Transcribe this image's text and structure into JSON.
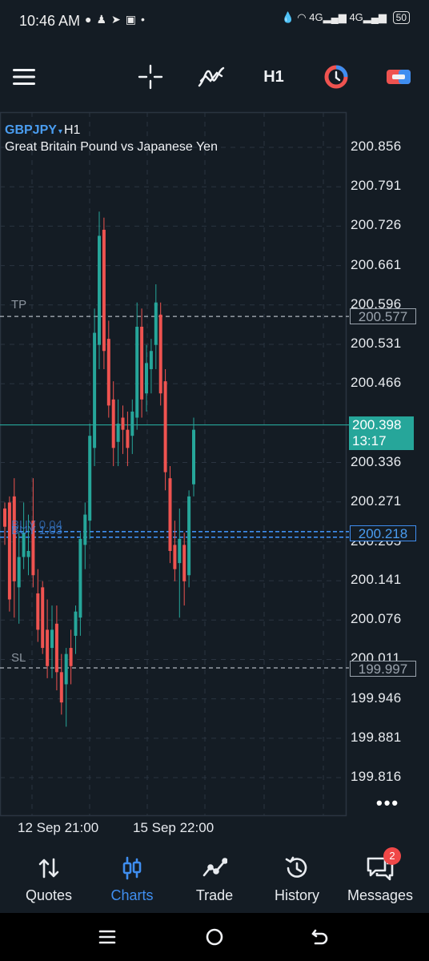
{
  "status_bar": {
    "time": "10:46 AM",
    "left_icons": [
      "messenger-icon",
      "snapchat-icon",
      "telegram-icon",
      "gallery-icon",
      "dot-icon"
    ],
    "right_icons": [
      "data-saver-icon",
      "wifi-icon",
      "4g-signal-icon",
      "4g-signal-icon",
      "battery-icon"
    ],
    "network_1": "4G",
    "network_2": "4G",
    "battery": "50"
  },
  "toolbar": {
    "menu_icon": "hamburger-menu-icon",
    "crosshair_icon": "crosshair-icon",
    "indicators_icon": "indicators-icon",
    "timeframe": "H1",
    "one_click_icon": "one-click-trading-icon",
    "account_icon": "account-icon"
  },
  "chart": {
    "symbol": "GBPJPY",
    "symbol_arrow": "▾",
    "timeframe": "H1",
    "description": "Great Britain Pound vs Japanese Yen",
    "price_axis": [
      "200.856",
      "200.791",
      "200.726",
      "200.661",
      "200.596",
      "200.531",
      "200.466",
      "200.336",
      "200.271",
      "200.205",
      "200.141",
      "200.076",
      "200.011",
      "199.946",
      "199.881",
      "199.816"
    ],
    "tp_label": "TP",
    "tp_price": "200.577",
    "sl_label": "SL",
    "sl_price": "199.997",
    "buy_label": "BUY 1.03",
    "buy_label_back": "BUY 0.04",
    "buy_price": "200.218",
    "current_price": "200.398",
    "countdown": "13:17",
    "x_labels": [
      "12 Sep 21:00",
      "15 Sep 22:00"
    ],
    "more_icon": "more-dots-icon",
    "colors": {
      "bull": "#26a69a",
      "bear": "#ef5350",
      "accent": "#3f8ef0",
      "background": "#141c24",
      "grid": "#2a3440"
    }
  },
  "chart_data": {
    "type": "candlestick",
    "title": "GBPJPY, H1",
    "ylim": [
      199.77,
      200.9
    ],
    "y_ticks": [
      199.816,
      199.881,
      199.946,
      200.011,
      200.076,
      200.141,
      200.205,
      200.271,
      200.336,
      200.466,
      200.531,
      200.596,
      200.661,
      200.726,
      200.791,
      200.856
    ],
    "x_tick_labels": [
      "12 Sep 21:00",
      "15 Sep 22:00"
    ],
    "levels": {
      "tp": 200.577,
      "sl": 199.997,
      "buy": 200.218,
      "current": 200.398
    },
    "candles": [
      [
        200.26,
        200.27,
        200.2,
        200.23
      ],
      [
        200.27,
        200.28,
        200.09,
        200.11
      ],
      [
        200.28,
        200.31,
        200.08,
        200.14
      ],
      [
        200.13,
        200.22,
        200.07,
        200.18
      ],
      [
        200.18,
        200.27,
        200.16,
        200.22
      ],
      [
        200.18,
        200.25,
        200.15,
        200.19
      ],
      [
        200.24,
        200.31,
        200.13,
        200.15
      ],
      [
        200.12,
        200.16,
        200.04,
        200.06
      ],
      [
        200.13,
        200.14,
        200.02,
        200.03
      ],
      [
        200.06,
        200.11,
        199.98,
        200.0
      ],
      [
        200.03,
        200.1,
        199.98,
        200.06
      ],
      [
        200.07,
        200.1,
        199.96,
        199.99
      ],
      [
        199.99,
        200.02,
        199.92,
        199.94
      ],
      [
        199.97,
        200.03,
        199.9,
        200.02
      ],
      [
        200.03,
        200.06,
        199.97,
        200.0
      ],
      [
        200.05,
        200.1,
        200.02,
        200.09
      ],
      [
        200.08,
        200.22,
        200.05,
        200.21
      ],
      [
        200.2,
        200.27,
        200.16,
        200.25
      ],
      [
        200.24,
        200.4,
        200.21,
        200.38
      ],
      [
        200.36,
        200.59,
        200.33,
        200.55
      ],
      [
        200.53,
        200.75,
        200.49,
        200.71
      ],
      [
        200.72,
        200.74,
        200.49,
        200.52
      ],
      [
        200.54,
        200.57,
        200.41,
        200.43
      ],
      [
        200.44,
        200.47,
        200.33,
        200.36
      ],
      [
        200.37,
        200.44,
        200.33,
        200.4
      ],
      [
        200.41,
        200.43,
        200.35,
        200.39
      ],
      [
        200.39,
        200.42,
        200.33,
        200.36
      ],
      [
        200.38,
        200.44,
        200.35,
        200.42
      ],
      [
        200.41,
        200.6,
        200.39,
        200.56
      ],
      [
        200.56,
        200.59,
        200.41,
        200.44
      ],
      [
        200.45,
        200.53,
        200.42,
        200.5
      ],
      [
        200.49,
        200.54,
        200.45,
        200.52
      ],
      [
        200.53,
        200.63,
        200.49,
        200.6
      ],
      [
        200.58,
        200.6,
        200.43,
        200.45
      ],
      [
        200.47,
        200.49,
        200.29,
        200.32
      ],
      [
        200.31,
        200.33,
        200.17,
        200.19
      ],
      [
        200.2,
        200.24,
        200.14,
        200.16
      ],
      [
        200.17,
        200.26,
        200.08,
        200.21
      ],
      [
        200.2,
        200.22,
        200.1,
        200.14
      ],
      [
        200.15,
        200.29,
        200.13,
        200.28
      ],
      [
        200.3,
        200.41,
        200.28,
        200.39
      ]
    ]
  },
  "bottom_nav": [
    {
      "label": "Quotes",
      "icon": "quotes-arrows-icon",
      "active": false
    },
    {
      "label": "Charts",
      "icon": "charts-candles-icon",
      "active": true
    },
    {
      "label": "Trade",
      "icon": "trade-line-icon",
      "active": false
    },
    {
      "label": "History",
      "icon": "history-clock-icon",
      "active": false
    },
    {
      "label": "Messages",
      "icon": "messages-bubble-icon",
      "active": false,
      "badge": "2"
    }
  ],
  "system_nav": {
    "recents": "recents-icon",
    "home": "home-icon",
    "back": "back-icon"
  }
}
